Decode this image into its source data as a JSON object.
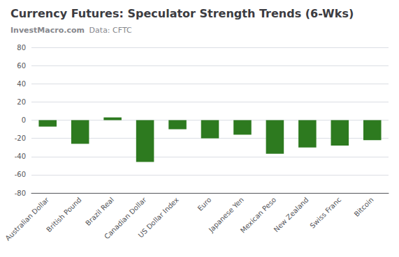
{
  "chart_data": {
    "type": "bar",
    "title": "Currency Futures: Speculator Strength Trends (6-Wks)",
    "subtitle": [
      "InvestMacro.com",
      "Data: CFTC"
    ],
    "categories": [
      "Australian Dollar",
      "British Pound",
      "Brazil Real",
      "Canadian Dollar",
      "US Dollar Index",
      "Euro",
      "Japanese Yen",
      "Mexican Peso",
      "New Zealand",
      "Swiss Franc",
      "Bitcoin"
    ],
    "values": [
      -7,
      -26,
      3,
      -46,
      -10,
      -20,
      -16,
      -37,
      -30,
      -28,
      -22
    ],
    "color": "#2d7a1f",
    "ylim": [
      -80,
      80
    ],
    "yticks": [
      -80,
      -60,
      -40,
      -20,
      0,
      20,
      40,
      60,
      80
    ],
    "grid": true
  }
}
